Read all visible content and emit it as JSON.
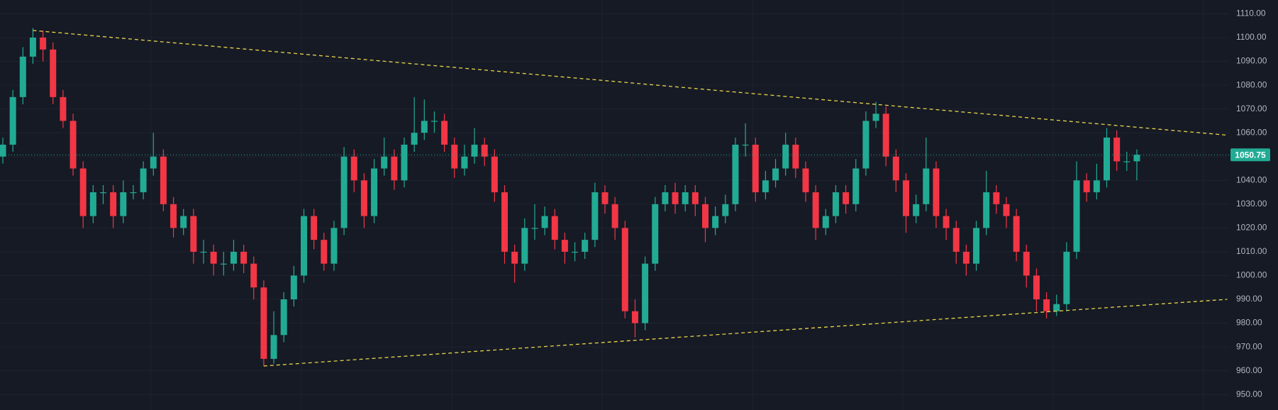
{
  "chart_data": {
    "type": "candlestick",
    "open": [
      1050,
      1055,
      1075,
      1092,
      1100,
      1095,
      1075,
      1065,
      1045,
      1025,
      1035,
      1035,
      1025,
      1035,
      1035,
      1045,
      1050,
      1030,
      1020,
      1025,
      1010,
      1010,
      1005,
      1005,
      1010,
      1005,
      995,
      965,
      975,
      990,
      1000,
      1025,
      1015,
      1005,
      1020,
      1050,
      1040,
      1025,
      1045,
      1050,
      1040,
      1055,
      1060,
      1065,
      1065,
      1055,
      1045,
      1050,
      1055,
      1050,
      1035,
      1010,
      1005,
      1020,
      1020,
      1025,
      1015,
      1010,
      1010,
      1015,
      1035,
      1030,
      1020,
      985,
      980,
      1005,
      1030,
      1035,
      1030,
      1035,
      1030,
      1020,
      1025,
      1030,
      1055,
      1055,
      1035,
      1040,
      1045,
      1055,
      1045,
      1035,
      1020,
      1025,
      1035,
      1030,
      1045,
      1065,
      1068,
      1050,
      1040,
      1025,
      1030,
      1045,
      1025,
      1020,
      1010,
      1005,
      1020,
      1035,
      1030,
      1025,
      1010,
      1000,
      990,
      985,
      988,
      1010,
      1040,
      1035,
      1040,
      1058,
      1048,
      1048
    ],
    "high": [
      1058,
      1078,
      1096,
      1104,
      1103,
      1098,
      1078,
      1068,
      1048,
      1038,
      1038,
      1038,
      1040,
      1038,
      1048,
      1060,
      1053,
      1033,
      1028,
      1028,
      1015,
      1013,
      1010,
      1015,
      1013,
      1008,
      998,
      985,
      993,
      1004,
      1028,
      1028,
      1018,
      1023,
      1054,
      1053,
      1043,
      1049,
      1058,
      1053,
      1058,
      1075,
      1074,
      1069,
      1068,
      1058,
      1055,
      1062,
      1058,
      1053,
      1038,
      1013,
      1024,
      1030,
      1029,
      1028,
      1018,
      1014,
      1018,
      1039,
      1038,
      1033,
      1023,
      990,
      1008,
      1033,
      1038,
      1039,
      1038,
      1038,
      1033,
      1029,
      1034,
      1058,
      1064,
      1058,
      1044,
      1049,
      1060,
      1058,
      1048,
      1038,
      1028,
      1038,
      1038,
      1049,
      1069,
      1073,
      1071,
      1053,
      1043,
      1034,
      1058,
      1048,
      1028,
      1023,
      1013,
      1023,
      1044,
      1038,
      1033,
      1028,
      1013,
      1003,
      993,
      992,
      1014,
      1048,
      1043,
      1047,
      1062,
      1061,
      1052,
      1053
    ],
    "low": [
      1047,
      1052,
      1072,
      1089,
      1090,
      1072,
      1062,
      1042,
      1020,
      1022,
      1030,
      1020,
      1022,
      1032,
      1032,
      1042,
      1027,
      1016,
      1017,
      1005,
      1005,
      1000,
      1000,
      1002,
      1001,
      990,
      962,
      963,
      972,
      987,
      997,
      1011,
      1002,
      1002,
      1017,
      1035,
      1020,
      1022,
      1042,
      1036,
      1037,
      1052,
      1057,
      1060,
      1052,
      1041,
      1042,
      1047,
      1046,
      1031,
      1005,
      997,
      1002,
      1015,
      1017,
      1011,
      1005,
      1006,
      1007,
      1012,
      1026,
      1015,
      982,
      974,
      977,
      1002,
      1027,
      1026,
      1027,
      1025,
      1014,
      1017,
      1022,
      1027,
      1050,
      1031,
      1032,
      1037,
      1042,
      1041,
      1031,
      1015,
      1017,
      1022,
      1026,
      1027,
      1042,
      1062,
      1046,
      1035,
      1018,
      1022,
      1027,
      1020,
      1015,
      1005,
      1000,
      1002,
      1017,
      1026,
      1020,
      1006,
      995,
      985,
      982,
      983,
      985,
      1007,
      1031,
      1032,
      1037,
      1044,
      1044,
      1040
    ],
    "close": [
      1055,
      1075,
      1092,
      1100,
      1095,
      1075,
      1065,
      1045,
      1025,
      1035,
      1035,
      1025,
      1035,
      1035,
      1045,
      1050,
      1030,
      1020,
      1025,
      1010,
      1010,
      1005,
      1005,
      1010,
      1005,
      995,
      965,
      975,
      990,
      1000,
      1025,
      1015,
      1005,
      1020,
      1050,
      1040,
      1025,
      1045,
      1050,
      1040,
      1055,
      1060,
      1065,
      1065,
      1055,
      1045,
      1050,
      1055,
      1050,
      1035,
      1010,
      1005,
      1020,
      1020,
      1025,
      1015,
      1010,
      1010,
      1015,
      1035,
      1030,
      1020,
      985,
      980,
      1005,
      1030,
      1035,
      1030,
      1035,
      1030,
      1020,
      1025,
      1030,
      1055,
      1055,
      1035,
      1040,
      1045,
      1055,
      1045,
      1035,
      1020,
      1025,
      1035,
      1030,
      1045,
      1065,
      1068,
      1050,
      1040,
      1025,
      1030,
      1045,
      1025,
      1020,
      1010,
      1005,
      1020,
      1035,
      1030,
      1025,
      1010,
      1000,
      990,
      985,
      988,
      1010,
      1040,
      1035,
      1040,
      1058,
      1048,
      1048,
      1050.75
    ],
    "up_color": "#22ab94",
    "down_color": "#f23645",
    "ylim": [
      943.5,
      1115.8
    ],
    "yticks": [
      {
        "value": 950,
        "label": "950.00"
      },
      {
        "value": 960,
        "label": "960.00"
      },
      {
        "value": 970,
        "label": "970.00"
      },
      {
        "value": 980,
        "label": "980.00"
      },
      {
        "value": 990,
        "label": "990.00"
      },
      {
        "value": 1000,
        "label": "1000.00"
      },
      {
        "value": 1010,
        "label": "1010.00"
      },
      {
        "value": 1020,
        "label": "1020.00"
      },
      {
        "value": 1030,
        "label": "1030.00"
      },
      {
        "value": 1040,
        "label": "1040.00"
      },
      {
        "value": 1050,
        "label": "1050.00"
      },
      {
        "value": 1060,
        "label": "1060.00"
      },
      {
        "value": 1070,
        "label": "1070.00"
      },
      {
        "value": 1080,
        "label": "1080.00"
      },
      {
        "value": 1090,
        "label": "1090.00"
      },
      {
        "value": 1100,
        "label": "1100.00"
      },
      {
        "value": 1110,
        "label": "1110.00"
      }
    ],
    "grid": true,
    "last_price": 1050.75,
    "trendline_color": "#e8d44a",
    "trendlines": [
      {
        "points": [
          [
            3,
            1103
          ],
          [
            122,
            1059
          ]
        ]
      },
      {
        "points": [
          [
            26,
            962
          ],
          [
            122,
            990
          ]
        ]
      }
    ]
  }
}
